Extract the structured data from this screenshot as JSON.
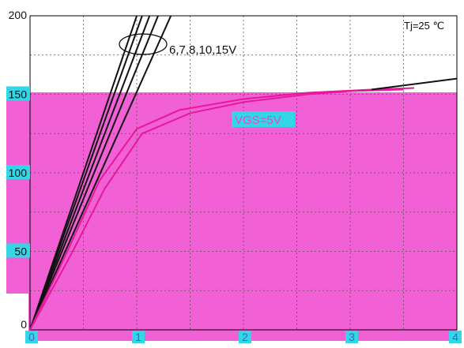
{
  "chart_data": {
    "type": "line",
    "title": "",
    "xlabel": "",
    "ylabel": "",
    "xlim": [
      0,
      4
    ],
    "ylim": [
      0,
      200
    ],
    "xticks": [
      "0",
      "1",
      "2",
      "3",
      "4"
    ],
    "yticks": [
      "0",
      "50",
      "100",
      "150",
      "200"
    ],
    "grid": true,
    "series": [
      {
        "group": "high_vgs",
        "points": [
          [
            0,
            0
          ],
          [
            1.0,
            200
          ]
        ]
      },
      {
        "group": "high_vgs",
        "points": [
          [
            0,
            0
          ],
          [
            1.05,
            200
          ]
        ]
      },
      {
        "group": "high_vgs",
        "points": [
          [
            0,
            0
          ],
          [
            1.12,
            200
          ]
        ]
      },
      {
        "group": "high_vgs",
        "points": [
          [
            0,
            0
          ],
          [
            1.2,
            200
          ]
        ]
      },
      {
        "group": "high_vgs",
        "points": [
          [
            0,
            0
          ],
          [
            1.32,
            200
          ]
        ]
      },
      {
        "name": "VGS=5V",
        "group": "vgs5",
        "points": [
          [
            0,
            0
          ],
          [
            0.4,
            50
          ],
          [
            0.7,
            90
          ],
          [
            1.05,
            125
          ],
          [
            1.5,
            138
          ],
          [
            2.0,
            145
          ],
          [
            2.6,
            150
          ],
          [
            3.0,
            152
          ],
          [
            3.5,
            153
          ]
        ]
      },
      {
        "group": "vgs5",
        "points": [
          [
            0,
            0
          ],
          [
            0.35,
            50
          ],
          [
            0.65,
            95
          ],
          [
            1.0,
            128
          ],
          [
            1.4,
            140
          ],
          [
            2.0,
            147
          ],
          [
            2.6,
            151
          ],
          [
            3.2,
            153
          ],
          [
            3.6,
            154
          ]
        ]
      },
      {
        "group": "high_vgs_sat",
        "points": [
          [
            3.2,
            153
          ],
          [
            4.0,
            160
          ]
        ]
      }
    ]
  },
  "annotations": {
    "temperature": "Tj=25 ℃",
    "group_label": "6,7,8,10,15V",
    "vgs5_label": "VGS=5V"
  },
  "colors": {
    "high_vgs": "#111111",
    "vgs5": "#e6199a",
    "overlay": "#ee44cc",
    "tick_bg": "#33d6e6"
  }
}
